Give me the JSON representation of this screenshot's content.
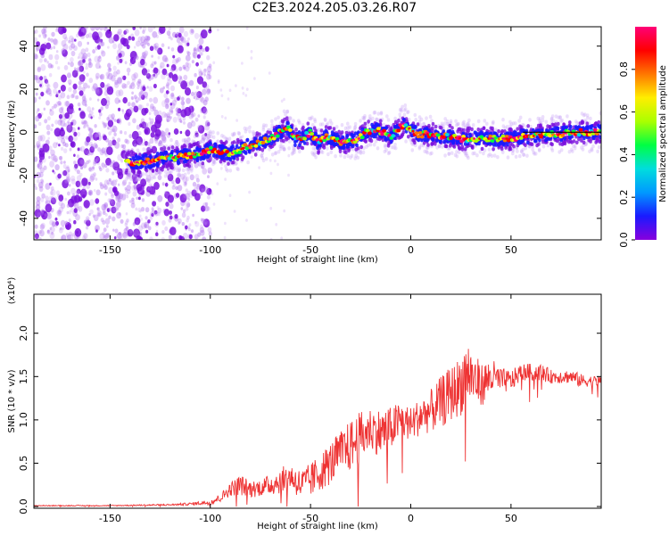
{
  "title": "C2E3.2024.205.03.26.R07",
  "colors": {
    "signal": "#ee3333",
    "axis": "#000000",
    "centerline": "#000000"
  },
  "colormap": [
    "#8800dd",
    "#1a1aff",
    "#0099ff",
    "#00dddd",
    "#00ff44",
    "#aaff00",
    "#ffee00",
    "#ff7700",
    "#ff0000",
    "#ff0077"
  ],
  "chart_data": [
    {
      "type": "heatmap",
      "name": "spectrogram",
      "xlabel": "Height of straight line (km)",
      "ylabel": "Frequency (Hz)",
      "xlim": [
        -188,
        95
      ],
      "ylim": [
        -50,
        49
      ],
      "xticks": [
        -150,
        -100,
        -50,
        0,
        50
      ],
      "yticks": [
        -40,
        -20,
        0,
        20,
        40
      ],
      "ridge_x": [
        -142,
        -135,
        -128,
        -120,
        -112,
        -105,
        -100,
        -95,
        -90,
        -85,
        -80,
        -75,
        -70,
        -65,
        -61,
        -58,
        -54,
        -50,
        -46,
        -42,
        -38,
        -34,
        -30,
        -26,
        -22,
        -18,
        -14,
        -10,
        -6,
        -3,
        0,
        4,
        8,
        12,
        16,
        20,
        25,
        30,
        35,
        40,
        45,
        50,
        55,
        60,
        65,
        70,
        75,
        80,
        85,
        90,
        95
      ],
      "ridge_y": [
        -14,
        -14,
        -13,
        -12,
        -11,
        -10,
        -8,
        -9,
        -10,
        -8,
        -6,
        -5,
        -3,
        0,
        2,
        -3,
        -3,
        0,
        -5,
        -2,
        -3,
        -5,
        -4,
        -3,
        0,
        1,
        0,
        -2,
        2,
        4,
        1,
        -1,
        -1,
        -1,
        -2,
        -2,
        -3,
        -3,
        -3,
        -3,
        -3,
        -3,
        -2,
        -2,
        -1,
        -1,
        -1,
        0,
        0,
        0,
        0
      ],
      "colorbar": {
        "label": "Normalized spectral amplitude",
        "range": [
          0,
          1
        ],
        "ticks": [
          "0.0",
          "0.2",
          "0.4",
          "0.6",
          "0.8"
        ],
        "tick_values": [
          0,
          0.2,
          0.4,
          0.6,
          0.8
        ]
      }
    },
    {
      "type": "line",
      "name": "snr",
      "xlabel": "Height of straight line (km)",
      "ylabel": "SNR (10 * v/v)",
      "y_exponent": "(x10⁴)",
      "xlim": [
        -188,
        95
      ],
      "ylim": [
        -0.02,
        2.45
      ],
      "xticks": [
        -150,
        -100,
        -50,
        0,
        50
      ],
      "yticks": [
        "0.0",
        "0.5",
        "1.0",
        "1.5",
        "2.0"
      ],
      "ytick_values": [
        0.0,
        0.5,
        1.0,
        1.5,
        2.0
      ],
      "series": [
        {
          "name": "SNR",
          "x": [
            -188,
            -150,
            -120,
            -110,
            -100,
            -95,
            -90,
            -85,
            -80,
            -75,
            -70,
            -65,
            -60,
            -55,
            -50,
            -45,
            -40,
            -35,
            -30,
            -25,
            -20,
            -15,
            -10,
            -5,
            0,
            5,
            10,
            15,
            20,
            25,
            28,
            30,
            35,
            40,
            45,
            50,
            55,
            60,
            65,
            70,
            75,
            80,
            85,
            90,
            95
          ],
          "mean": [
            0.01,
            0.01,
            0.02,
            0.03,
            0.05,
            0.1,
            0.2,
            0.25,
            0.2,
            0.22,
            0.25,
            0.3,
            0.35,
            0.25,
            0.3,
            0.4,
            0.5,
            0.62,
            0.7,
            0.8,
            0.9,
            0.85,
            0.9,
            1.0,
            0.95,
            1.05,
            1.1,
            1.2,
            1.3,
            1.4,
            1.6,
            1.5,
            1.4,
            1.5,
            1.45,
            1.45,
            1.55,
            1.55,
            1.55,
            1.5,
            1.5,
            1.5,
            1.45,
            1.45,
            1.45
          ],
          "spread": [
            0.005,
            0.005,
            0.01,
            0.015,
            0.03,
            0.05,
            0.08,
            0.12,
            0.1,
            0.1,
            0.12,
            0.15,
            0.15,
            0.18,
            0.2,
            0.22,
            0.25,
            0.25,
            0.3,
            0.3,
            0.25,
            0.28,
            0.25,
            0.22,
            0.2,
            0.22,
            0.25,
            0.3,
            0.32,
            0.35,
            0.4,
            0.35,
            0.25,
            0.22,
            0.15,
            0.12,
            0.1,
            0.1,
            0.1,
            0.08,
            0.08,
            0.08,
            0.08,
            0.06,
            0.06
          ]
        }
      ]
    }
  ]
}
